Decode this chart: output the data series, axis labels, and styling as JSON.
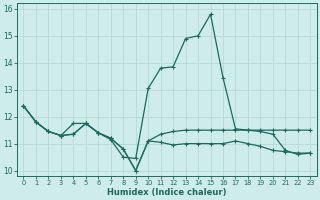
{
  "xlabel": "Humidex (Indice chaleur)",
  "background_color": "#ceecea",
  "grid_color": "#b8d8d4",
  "line_color": "#1a6b5e",
  "xlim": [
    -0.5,
    23.5
  ],
  "ylim": [
    9.8,
    16.2
  ],
  "yticks": [
    10,
    11,
    12,
    13,
    14,
    15,
    16
  ],
  "xticks": [
    0,
    1,
    2,
    3,
    4,
    5,
    6,
    7,
    8,
    9,
    10,
    11,
    12,
    13,
    14,
    15,
    16,
    17,
    18,
    19,
    20,
    21,
    22,
    23
  ],
  "series1_x": [
    0,
    1,
    2,
    3,
    4,
    5,
    6,
    7,
    8,
    9,
    10,
    11,
    12,
    13,
    14,
    15,
    16,
    17,
    18,
    19,
    20,
    21,
    22,
    23
  ],
  "series1_y": [
    12.4,
    11.8,
    11.45,
    11.3,
    11.75,
    11.75,
    11.4,
    11.15,
    10.5,
    10.45,
    13.05,
    13.8,
    13.85,
    14.9,
    15.0,
    15.8,
    13.45,
    11.55,
    11.5,
    11.45,
    11.35,
    10.75,
    10.6,
    10.65
  ],
  "series2_x": [
    0,
    1,
    2,
    3,
    4,
    5,
    6,
    7,
    8,
    9,
    10,
    11,
    12,
    13,
    14,
    15,
    16,
    17,
    18,
    19,
    20,
    21,
    22,
    23
  ],
  "series2_y": [
    12.4,
    11.8,
    11.45,
    11.3,
    11.35,
    11.75,
    11.4,
    11.2,
    10.8,
    10.0,
    11.1,
    11.35,
    11.45,
    11.5,
    11.5,
    11.5,
    11.5,
    11.5,
    11.5,
    11.5,
    11.5,
    11.5,
    11.5,
    11.5
  ],
  "series3_x": [
    0,
    1,
    2,
    3,
    4,
    5,
    6,
    7,
    8,
    9,
    10,
    11,
    12,
    13,
    14,
    15,
    16,
    17,
    18,
    19,
    20,
    21,
    22,
    23
  ],
  "series3_y": [
    12.4,
    11.8,
    11.45,
    11.3,
    11.35,
    11.75,
    11.4,
    11.2,
    10.8,
    10.0,
    11.1,
    11.05,
    10.95,
    11.0,
    11.0,
    11.0,
    11.0,
    11.1,
    11.0,
    10.9,
    10.75,
    10.7,
    10.65,
    10.65
  ]
}
